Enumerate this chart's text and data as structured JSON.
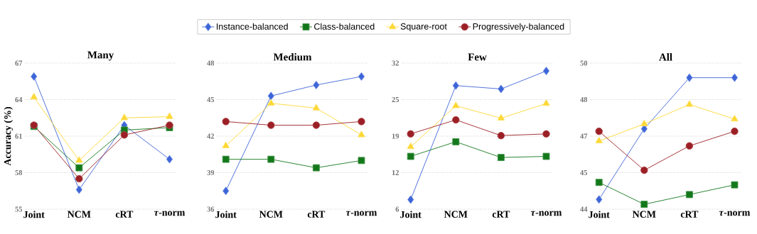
{
  "chart_data": [
    {
      "type": "line",
      "title": "Many",
      "ylabel": "Accuracy (%)",
      "categories": [
        "Joint",
        "NCM",
        "cRT",
        "*τ*-norm"
      ],
      "ylim": [
        55,
        67
      ],
      "yticks": [
        55,
        58,
        61,
        64,
        67
      ],
      "grid": "y",
      "legend": "top",
      "series": [
        {
          "name": "Instance-balanced",
          "color": "#3d65d8",
          "marker": "diamond",
          "values": [
            65.9,
            56.6,
            61.9,
            59.1
          ]
        },
        {
          "name": "Class-balanced",
          "color": "#13781a",
          "marker": "square",
          "values": [
            61.8,
            58.4,
            61.5,
            61.7
          ]
        },
        {
          "name": "Square-root",
          "color": "#fdd835",
          "marker": "triangle",
          "values": [
            64.2,
            59.0,
            62.5,
            62.6
          ]
        },
        {
          "name": "Progressively-balanced",
          "color": "#9b1f25",
          "marker": "circle",
          "values": [
            61.9,
            57.5,
            61.1,
            61.9
          ]
        }
      ]
    },
    {
      "type": "line",
      "title": "Medium",
      "categories": [
        "Joint",
        "NCM",
        "cRT",
        "*τ*-norm"
      ],
      "ylim": [
        36,
        48
      ],
      "yticks": [
        36,
        39,
        42,
        45,
        48
      ],
      "grid": "y",
      "series": [
        {
          "color": "#3d65d8",
          "marker": "diamond",
          "values": [
            37.5,
            45.3,
            46.2,
            46.9
          ]
        },
        {
          "color": "#13781a",
          "marker": "square",
          "values": [
            40.1,
            40.1,
            39.4,
            40.0
          ]
        },
        {
          "color": "#fdd835",
          "marker": "triangle",
          "values": [
            41.2,
            44.7,
            44.3,
            42.1
          ]
        },
        {
          "color": "#9b1f25",
          "marker": "circle",
          "values": [
            43.2,
            42.9,
            42.9,
            43.2
          ]
        }
      ]
    },
    {
      "type": "line",
      "title": "Few",
      "categories": [
        "Joint",
        "NCM",
        "cRT",
        "*τ*-norm"
      ],
      "ylim": [
        6,
        32
      ],
      "yticks": [
        6,
        {
          "value": 12.5,
          "label": "12"
        },
        19,
        {
          "value": 25.5,
          "label": "25"
        },
        32
      ],
      "grid": "y",
      "series": [
        {
          "color": "#3d65d8",
          "marker": "diamond",
          "values": [
            7.7,
            28.0,
            27.4,
            30.6
          ]
        },
        {
          "color": "#13781a",
          "marker": "square",
          "values": [
            15.4,
            18.0,
            15.2,
            15.4
          ]
        },
        {
          "color": "#fdd835",
          "marker": "triangle",
          "values": [
            17.1,
            24.4,
            22.2,
            24.8
          ]
        },
        {
          "color": "#9b1f25",
          "marker": "circle",
          "values": [
            19.4,
            21.9,
            19.1,
            19.4
          ]
        }
      ]
    },
    {
      "type": "line",
      "title": "All",
      "categories": [
        "Joint",
        "NCM",
        "cRT",
        "*τ*-norm"
      ],
      "ylim": [
        44,
        50
      ],
      "yticks": [
        44,
        {
          "value": 45.5,
          "label": "45"
        },
        47,
        {
          "value": 48.5,
          "label": "48"
        },
        50
      ],
      "grid": "y",
      "series": [
        {
          "color": "#3d65d8",
          "marker": "diamond",
          "values": [
            44.4,
            47.3,
            49.4,
            49.4
          ]
        },
        {
          "color": "#13781a",
          "marker": "square",
          "values": [
            45.1,
            44.2,
            44.6,
            45.0
          ]
        },
        {
          "color": "#fdd835",
          "marker": "triangle",
          "values": [
            46.8,
            47.5,
            48.3,
            47.7
          ]
        },
        {
          "color": "#9b1f25",
          "marker": "circle",
          "values": [
            47.2,
            45.6,
            46.6,
            47.2
          ]
        }
      ]
    }
  ]
}
